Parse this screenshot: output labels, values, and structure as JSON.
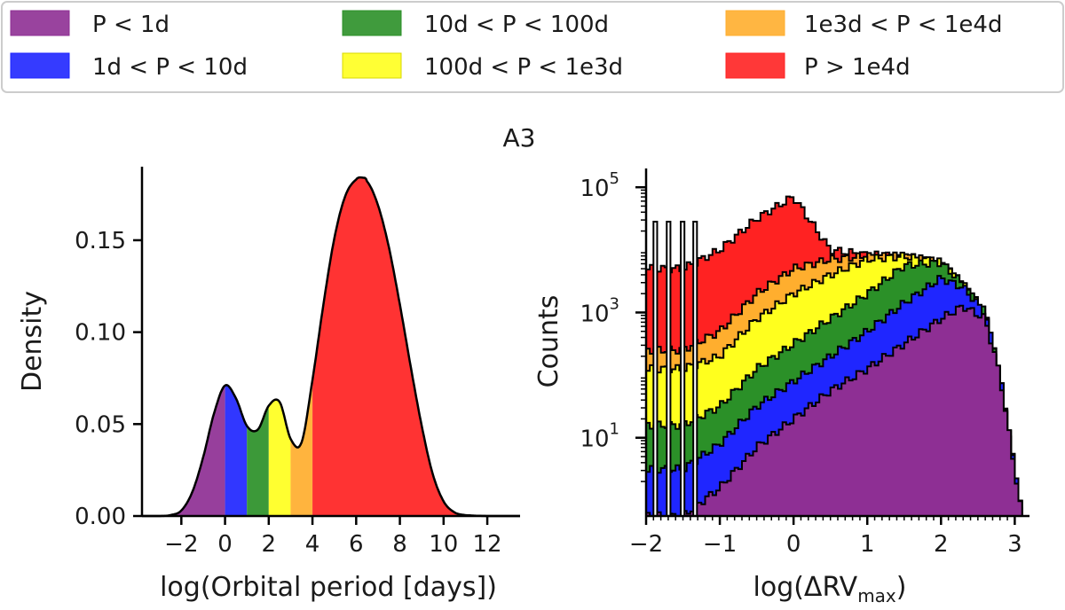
{
  "figure_title": "A3",
  "legend": [
    {
      "label": "P < 1d",
      "color": "#8e2f94"
    },
    {
      "label": "1d < P < 10d",
      "color": "#1f26ff"
    },
    {
      "label": "10d < P < 100d",
      "color": "#2b9028"
    },
    {
      "label": "100d < P < 1e3d",
      "color": "#ffff1e"
    },
    {
      "label": "1e3d < P < 1e4d",
      "color": "#ffae2e"
    },
    {
      "label": "P > 1e4d",
      "color": "#ff2222"
    }
  ],
  "chart_data": [
    {
      "type": "area",
      "title": "",
      "xlabel": "log(Orbital period [days])",
      "ylabel": "Density",
      "xlim": [
        -3.8,
        13.5
      ],
      "ylim": [
        0,
        0.19
      ],
      "xticks": [
        -2,
        0,
        2,
        4,
        6,
        8,
        10,
        12
      ],
      "xtick_labels": [
        "−2",
        "0",
        "2",
        "4",
        "6",
        "8",
        "10",
        "12"
      ],
      "yticks": [
        0.0,
        0.05,
        0.1,
        0.15
      ],
      "ytick_labels": [
        "0.00",
        "0.05",
        "0.10",
        "0.15"
      ],
      "curve": {
        "x": [
          -3.8,
          -3.0,
          -2.5,
          -2.0,
          -1.5,
          -1.0,
          -0.5,
          0.0,
          0.5,
          1.0,
          1.5,
          2.0,
          2.5,
          3.0,
          3.5,
          4.0,
          4.5,
          5.0,
          5.5,
          6.0,
          6.3,
          6.5,
          7.0,
          7.5,
          8.0,
          8.5,
          9.0,
          9.5,
          10.0,
          10.5,
          11.0,
          12.0,
          13.5
        ],
        "y": [
          0.0,
          0.0,
          0.0005,
          0.003,
          0.013,
          0.032,
          0.056,
          0.071,
          0.064,
          0.049,
          0.047,
          0.06,
          0.062,
          0.042,
          0.04,
          0.074,
          0.115,
          0.151,
          0.174,
          0.183,
          0.184,
          0.182,
          0.169,
          0.146,
          0.115,
          0.081,
          0.049,
          0.023,
          0.008,
          0.002,
          0.0005,
          0.0,
          0.0
        ]
      },
      "regions": [
        {
          "name": "P < 1d",
          "x_from": -3.8,
          "x_to": 0
        },
        {
          "name": "1d < P < 10d",
          "x_from": 0,
          "x_to": 1
        },
        {
          "name": "10d < P < 100d",
          "x_from": 1,
          "x_to": 2
        },
        {
          "name": "100d < P < 1e3d",
          "x_from": 2,
          "x_to": 3
        },
        {
          "name": "1e3d < P < 1e4d",
          "x_from": 3,
          "x_to": 4
        },
        {
          "name": "P > 1e4d",
          "x_from": 4,
          "x_to": 13.5
        }
      ]
    },
    {
      "type": "bar",
      "subtype": "stacked-step-histogram",
      "title": "",
      "xlabel_main": "log(ΔRV",
      "xlabel_sub": "max",
      "xlabel_end": ")",
      "ylabel": "Counts",
      "yscale": "log",
      "xlim": [
        -2.0,
        3.2
      ],
      "ylim_log10": [
        -0.25,
        5.3
      ],
      "xticks": [
        -2,
        -1,
        0,
        1,
        2,
        3
      ],
      "xtick_labels": [
        "−2",
        "−1",
        "0",
        "1",
        "2",
        "3"
      ],
      "yticks_log10": [
        1,
        3,
        5
      ],
      "ytick_base": "10",
      "ytick_exponents": [
        "1",
        "3",
        "5"
      ],
      "x": [
        -2.0,
        -1.5,
        -1.0,
        -0.5,
        0.0,
        0.5,
        1.0,
        1.5,
        2.0,
        2.3,
        2.6,
        2.8,
        3.1
      ],
      "series": [
        {
          "name": "P < 1d",
          "log10_counts": [
            -0.25,
            -0.25,
            0.2,
            0.85,
            1.3,
            1.75,
            2.1,
            2.5,
            2.9,
            3.1,
            2.9,
            2.0,
            -0.25
          ]
        },
        {
          "name": "1d < P < 10d",
          "log10_counts": [
            0.5,
            0.5,
            0.9,
            1.5,
            1.9,
            2.3,
            2.7,
            3.15,
            3.55,
            3.4,
            3.0,
            2.0,
            -0.25
          ]
        },
        {
          "name": "10d < P < 100d",
          "log10_counts": [
            1.2,
            1.2,
            1.5,
            2.1,
            2.5,
            2.9,
            3.3,
            3.75,
            3.8,
            3.45,
            3.0,
            2.0,
            -0.25
          ]
        },
        {
          "name": "100d < P < 1e3d",
          "log10_counts": [
            2.1,
            2.1,
            2.3,
            2.9,
            3.3,
            3.6,
            3.85,
            3.9,
            3.8,
            3.45,
            3.0,
            2.0,
            -0.25
          ]
        },
        {
          "name": "1e3d < P < 1e4d",
          "log10_counts": [
            2.4,
            2.4,
            2.7,
            3.3,
            3.7,
            3.85,
            3.9,
            3.9,
            3.8,
            3.45,
            3.0,
            2.0,
            -0.25
          ]
        },
        {
          "name": "P > 1e4d",
          "log10_counts": [
            3.7,
            3.7,
            4.0,
            4.5,
            4.85,
            4.0,
            3.92,
            3.9,
            3.8,
            3.45,
            3.0,
            2.0,
            -0.25
          ]
        }
      ]
    }
  ]
}
